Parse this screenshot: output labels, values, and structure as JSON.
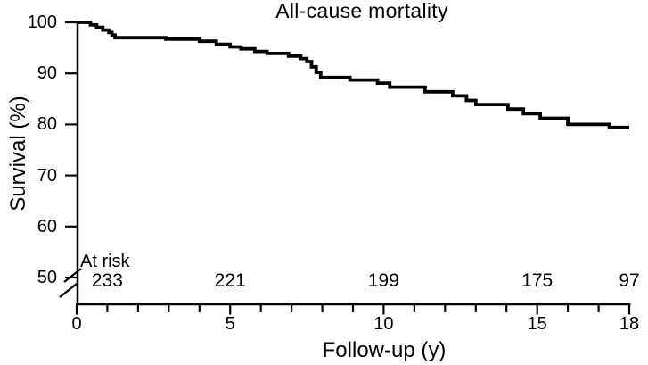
{
  "chart_data": {
    "type": "line",
    "subtype": "kaplan_meier_step",
    "title": "All-cause mortality",
    "xlabel": "Follow-up (y)",
    "ylabel": "Survival (%)",
    "xlim": [
      0,
      18
    ],
    "ylim": [
      50,
      100
    ],
    "y_axis_break_below": 50,
    "grid": false,
    "legend": false,
    "x_major_ticks": [
      0,
      5,
      10,
      15,
      18
    ],
    "x_tick_labels": [
      "0",
      "5",
      "10",
      "15",
      "18"
    ],
    "x_minor_tick_interval": 1,
    "y_ticks": [
      100,
      90,
      80,
      70,
      60,
      50
    ],
    "y_tick_labels": [
      "100",
      "90",
      "80",
      "70",
      "60",
      "50"
    ],
    "line_color": "#000000",
    "background_color": "#ffffff",
    "series": [
      {
        "name": "All-cause mortality",
        "color": "#000000",
        "step": true,
        "points": [
          [
            0,
            100
          ],
          [
            0.45,
            99.5
          ],
          [
            0.65,
            99.0
          ],
          [
            0.85,
            98.5
          ],
          [
            1.05,
            98.0
          ],
          [
            1.15,
            97.5
          ],
          [
            1.25,
            97.0
          ],
          [
            2.9,
            96.7
          ],
          [
            4.0,
            96.3
          ],
          [
            4.55,
            95.7
          ],
          [
            5.0,
            95.2
          ],
          [
            5.35,
            94.8
          ],
          [
            5.8,
            94.3
          ],
          [
            6.2,
            93.9
          ],
          [
            6.9,
            93.4
          ],
          [
            7.3,
            92.9
          ],
          [
            7.5,
            92.3
          ],
          [
            7.65,
            91.3
          ],
          [
            7.8,
            90.2
          ],
          [
            7.95,
            89.2
          ],
          [
            8.9,
            88.7
          ],
          [
            9.8,
            88.1
          ],
          [
            10.2,
            87.3
          ],
          [
            11.35,
            86.4
          ],
          [
            12.25,
            85.6
          ],
          [
            12.7,
            84.7
          ],
          [
            13.0,
            83.9
          ],
          [
            14.05,
            83.0
          ],
          [
            14.55,
            82.1
          ],
          [
            15.1,
            81.2
          ],
          [
            16.0,
            80.0
          ],
          [
            17.35,
            79.4
          ],
          [
            18,
            79.4
          ]
        ]
      }
    ],
    "at_risk_row": {
      "label": "At risk",
      "times": [
        1,
        5,
        10,
        15,
        18
      ],
      "counts": [
        "233",
        "221",
        "199",
        "175",
        "97"
      ]
    }
  }
}
